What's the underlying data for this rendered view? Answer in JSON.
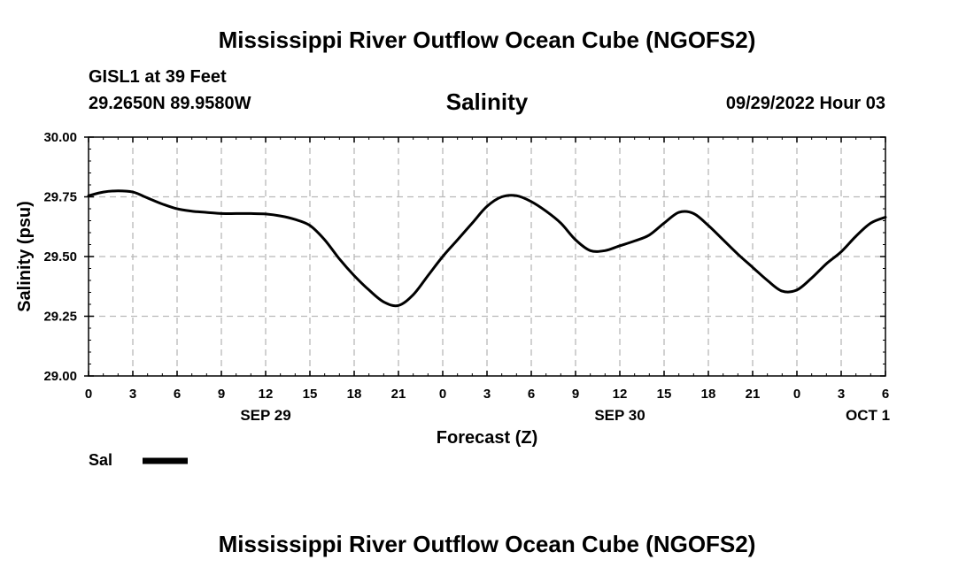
{
  "header": {
    "title": "Mississippi River Outflow Ocean Cube (NGOFS2)",
    "station": "GISL1 at 39 Feet",
    "coords": "29.2650N  89.9580W",
    "subtitle": "Salinity",
    "datetime": "09/29/2022 Hour 03"
  },
  "footer": {
    "title": "Mississippi River Outflow Ocean Cube (NGOFS2)"
  },
  "chart_data": {
    "type": "line",
    "title": "Salinity",
    "xlabel": "Forecast (Z)",
    "ylabel": "Salinity (psu)",
    "xlim": [
      0,
      54
    ],
    "ylim": [
      29.0,
      30.0
    ],
    "grid": true,
    "x_ticks": [
      0,
      3,
      6,
      9,
      12,
      15,
      18,
      21,
      24,
      27,
      30,
      33,
      36,
      39,
      42,
      45,
      48,
      51,
      54
    ],
    "x_tick_labels": [
      "0",
      "3",
      "6",
      "9",
      "12",
      "15",
      "18",
      "21",
      "0",
      "3",
      "6",
      "9",
      "12",
      "15",
      "18",
      "21",
      "0",
      "3",
      "6"
    ],
    "y_ticks": [
      29.0,
      29.25,
      29.5,
      29.75,
      30.0
    ],
    "y_tick_labels": [
      "29.00",
      "29.25",
      "29.50",
      "29.75",
      "30.00"
    ],
    "date_labels": [
      {
        "x": 12,
        "label": "SEP 29"
      },
      {
        "x": 36,
        "label": "SEP 30"
      },
      {
        "x": 52.8,
        "label": "OCT 1"
      }
    ],
    "legend": [
      {
        "name": "Sal",
        "color": "#000000"
      }
    ],
    "series": [
      {
        "name": "Sal",
        "color": "#000000",
        "x": [
          0,
          1,
          2,
          3,
          4,
          5,
          6,
          7,
          8,
          9,
          10,
          11,
          12,
          13,
          14,
          15,
          16,
          17,
          18,
          19,
          20,
          21,
          22,
          23,
          24,
          25,
          26,
          27,
          28,
          29,
          30,
          31,
          32,
          33,
          34,
          35,
          36,
          37,
          38,
          39,
          40,
          41,
          42,
          43,
          44,
          45,
          46,
          47,
          48,
          49,
          50,
          51,
          52,
          53,
          54
        ],
        "values": [
          29.755,
          29.77,
          29.775,
          29.77,
          29.745,
          29.72,
          29.7,
          29.69,
          29.685,
          29.68,
          29.68,
          29.68,
          29.678,
          29.67,
          29.655,
          29.63,
          29.57,
          29.49,
          29.42,
          29.36,
          29.31,
          29.295,
          29.34,
          29.42,
          29.5,
          29.57,
          29.64,
          29.71,
          29.75,
          29.755,
          29.73,
          29.69,
          29.64,
          29.57,
          29.525,
          29.525,
          29.545,
          29.565,
          29.59,
          29.64,
          29.685,
          29.68,
          29.63,
          29.57,
          29.51,
          29.455,
          29.4,
          29.355,
          29.36,
          29.41,
          29.47,
          29.52,
          29.585,
          29.64,
          29.665
        ]
      }
    ]
  }
}
